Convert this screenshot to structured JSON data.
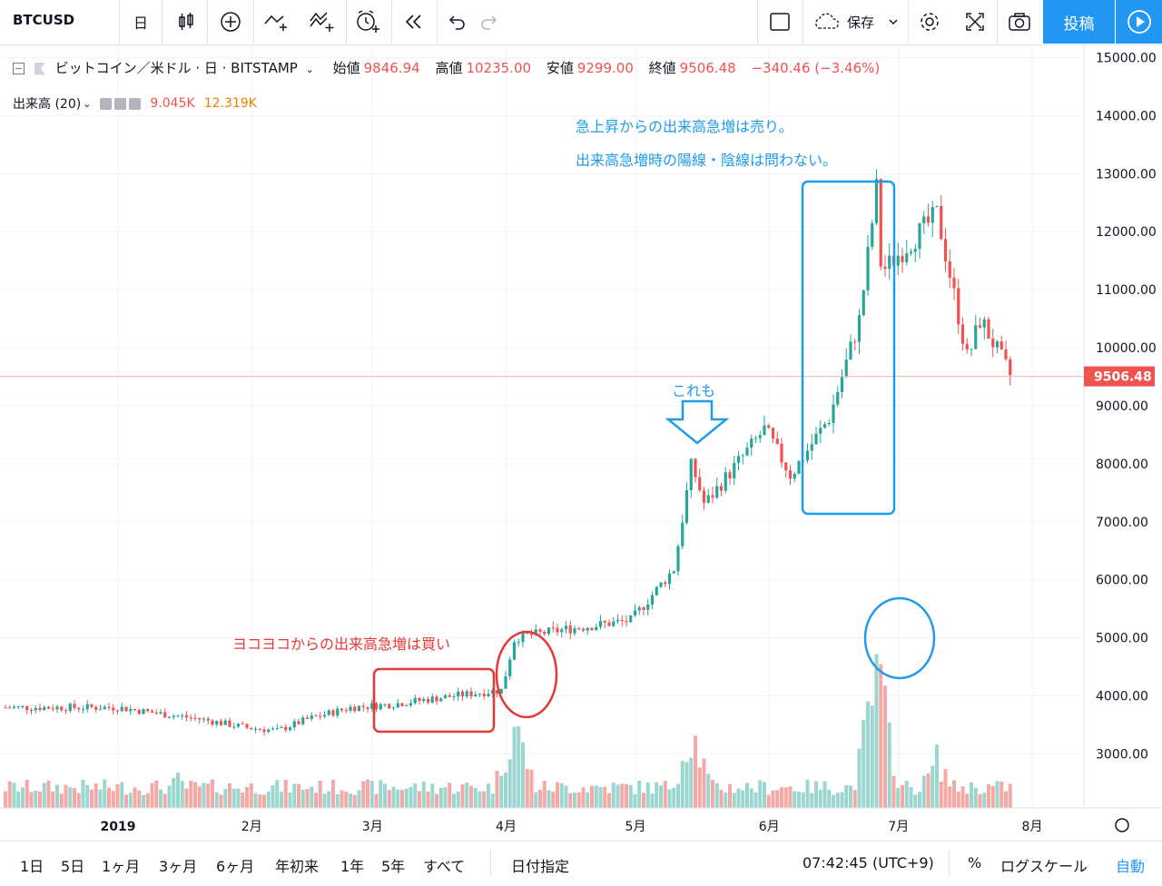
{
  "toolbar": {
    "symbol": "BTCUSD",
    "interval": "日",
    "save_label": "保存",
    "post_label": "投稿"
  },
  "legend": {
    "title": "ビットコイン／米ドル · 日 · BITSTAMP",
    "open_label": "始値",
    "open": "9846.94",
    "high_label": "高値",
    "high": "10235.00",
    "low_label": "安値",
    "low": "9299.00",
    "close_label": "終値",
    "close": "9506.48",
    "change": "−340.46 (−3.46%)",
    "volume_label": "出来高 (20)",
    "volume_value": "9.045K",
    "volume_ma": "12.319K"
  },
  "price_axis": {
    "ticks": [
      "15000.00",
      "14000.00",
      "13000.00",
      "12000.00",
      "11000.00",
      "10000.00",
      "9000.00",
      "8000.00",
      "7000.00",
      "6000.00",
      "5000.00",
      "4000.00",
      "3000.00"
    ],
    "last_price": "9506.48"
  },
  "time_axis": {
    "labels": [
      "2019",
      "2月",
      "3月",
      "4月",
      "5月",
      "6月",
      "7月",
      "8月"
    ]
  },
  "annotations": {
    "sell_line1": "急上昇からの出来高急増は売り。",
    "sell_line2": "出来高急増時の陽線・陰線は問わない。",
    "also": "これも",
    "buy": "ヨコヨコからの出来高急増は買い"
  },
  "bottom": {
    "ranges": [
      "1日",
      "5日",
      "1ヶ月",
      "3ヶ月",
      "6ヶ月",
      "年初来",
      "1年",
      "5年",
      "すべて"
    ],
    "date_pick": "日付指定",
    "time": "07:42:45 (UTC+9)",
    "percent": "%",
    "log_scale": "ログスケール",
    "auto": "自動"
  },
  "colors": {
    "up": "#26a69a",
    "down": "#ef5350",
    "vol_up": "#9bd6cf",
    "vol_down": "#f5a9a6",
    "accent": "#2196f3",
    "annotation_blue": "#1e9be9",
    "annotation_red": "#e53935"
  },
  "chart_data": {
    "type": "candlestick",
    "price_range": [
      2200,
      15300
    ],
    "ohlc_anchors": [
      {
        "date": "2019-01-01",
        "close": 3800
      },
      {
        "date": "2019-01-10",
        "close": 3700
      },
      {
        "date": "2019-01-20",
        "close": 3600
      },
      {
        "date": "2019-01-31",
        "close": 3450
      },
      {
        "date": "2019-02-07",
        "close": 3400
      },
      {
        "date": "2019-02-14",
        "close": 3600
      },
      {
        "date": "2019-02-24",
        "close": 3800
      },
      {
        "date": "2019-03-05",
        "close": 3850
      },
      {
        "date": "2019-03-20",
        "close": 4000
      },
      {
        "date": "2019-03-31",
        "close": 4100
      },
      {
        "date": "2019-04-03",
        "close": 5000
      },
      {
        "date": "2019-04-15",
        "close": 5150
      },
      {
        "date": "2019-04-30",
        "close": 5300
      },
      {
        "date": "2019-05-10",
        "close": 6200
      },
      {
        "date": "2019-05-14",
        "close": 8000
      },
      {
        "date": "2019-05-17",
        "close": 7300
      },
      {
        "date": "2019-05-31",
        "close": 8600
      },
      {
        "date": "2019-06-06",
        "close": 7800
      },
      {
        "date": "2019-06-15",
        "close": 8800
      },
      {
        "date": "2019-06-22",
        "close": 10500
      },
      {
        "date": "2019-06-26",
        "close": 12800
      },
      {
        "date": "2019-06-27",
        "close": 11300
      },
      {
        "date": "2019-07-10",
        "close": 12300
      },
      {
        "date": "2019-07-17",
        "close": 9800
      },
      {
        "date": "2019-07-20",
        "close": 10500
      },
      {
        "date": "2019-07-27",
        "close": 9506
      }
    ],
    "volume_range": [
      0,
      100
    ],
    "volume_anchors": [
      {
        "date": "2019-01-15",
        "value": 20
      },
      {
        "date": "2019-04-03",
        "value": 60
      },
      {
        "date": "2019-05-14",
        "value": 55
      },
      {
        "date": "2019-06-26",
        "value": 95
      },
      {
        "date": "2019-07-10",
        "value": 35
      }
    ]
  }
}
